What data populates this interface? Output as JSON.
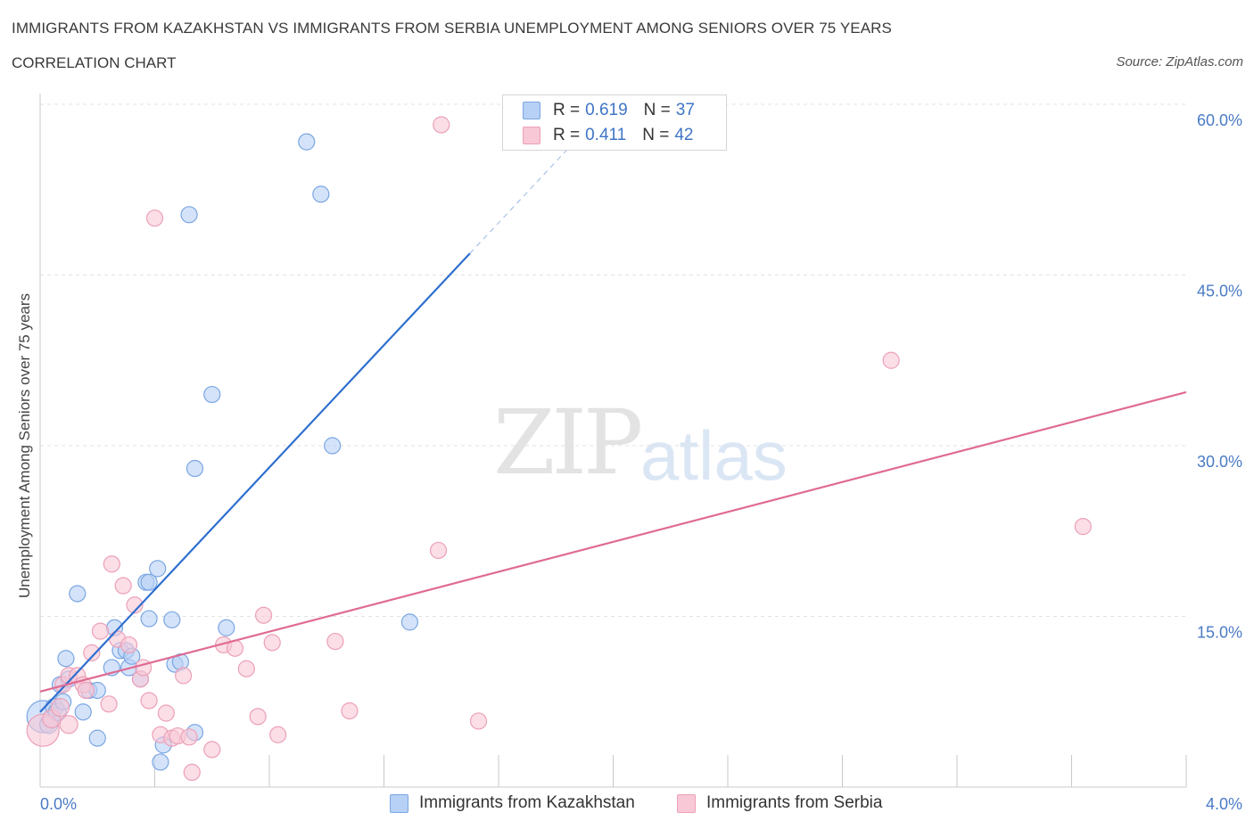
{
  "header": {
    "title": "IMMIGRANTS FROM KAZAKHSTAN VS IMMIGRANTS FROM SERBIA UNEMPLOYMENT AMONG SENIORS OVER 75 YEARS",
    "subtitle": "CORRELATION CHART",
    "source": "Source: ZipAtlas.com"
  },
  "watermark": {
    "zip": "ZIP",
    "atlas": "atlas"
  },
  "legend": {
    "series1": {
      "r_label": "R =",
      "r_value": "0.619",
      "n_label": "N =",
      "n_value": "37"
    },
    "series2": {
      "r_label": "R =",
      "r_value": "0.411",
      "n_label": "N =",
      "n_value": "42"
    }
  },
  "bottom_legend": {
    "series1": "Immigrants from Kazakhstan",
    "series2": "Immigrants from Serbia"
  },
  "colors": {
    "blue_fill": "#b7d0f5",
    "blue_stroke": "#7aa6e3",
    "blue_line": "#2f6fcf",
    "pink_fill": "#f8c8d6",
    "pink_stroke": "#eca0b8",
    "pink_line": "#e06a93",
    "grid": "#e2e2e2",
    "tick_text": "#4a7bc4"
  },
  "chart_data": {
    "type": "scatter",
    "title": "IMMIGRANTS FROM KAZAKHSTAN VS IMMIGRANTS FROM SERBIA UNEMPLOYMENT AMONG SENIORS OVER 75 YEARS",
    "xlabel": "",
    "ylabel": "Unemployment Among Seniors over 75 years",
    "xlim": [
      0,
      4.0
    ],
    "ylim": [
      0,
      60
    ],
    "x_ticks": [
      {
        "value": 0,
        "label": "0.0%"
      },
      {
        "value": 4.0,
        "label": "4.0%"
      }
    ],
    "y_ticks": [
      {
        "value": 15,
        "label": "15.0%"
      },
      {
        "value": 30,
        "label": "30.0%"
      },
      {
        "value": 45,
        "label": "45.0%"
      },
      {
        "value": 60,
        "label": "60.0%"
      }
    ],
    "x_minor_ticks": [
      0,
      0.4,
      0.8,
      1.2,
      1.6,
      2.0,
      2.4,
      2.8,
      3.2,
      3.6,
      4.0
    ],
    "series": [
      {
        "name": "Immigrants from Kazakhstan",
        "r": 0.619,
        "n": 37,
        "trend": {
          "x": [
            0.0,
            1.5
          ],
          "y": [
            6.6,
            46.9
          ],
          "dashed_to": [
            1.85,
            56.3
          ]
        },
        "points": [
          [
            0.01,
            6.2,
            18
          ],
          [
            0.03,
            5.5,
            10
          ],
          [
            0.05,
            7.0,
            10
          ],
          [
            0.06,
            6.6,
            10
          ],
          [
            0.08,
            7.5,
            9
          ],
          [
            0.07,
            9.0,
            9
          ],
          [
            0.1,
            9.5,
            9
          ],
          [
            0.09,
            11.3,
            9
          ],
          [
            0.13,
            17.0,
            9
          ],
          [
            0.15,
            6.6,
            9
          ],
          [
            0.17,
            8.5,
            9
          ],
          [
            0.2,
            8.5,
            9
          ],
          [
            0.2,
            4.3,
            9
          ],
          [
            0.25,
            10.5,
            9
          ],
          [
            0.26,
            14.0,
            9
          ],
          [
            0.28,
            12.0,
            9
          ],
          [
            0.3,
            12.0,
            9
          ],
          [
            0.31,
            10.5,
            9
          ],
          [
            0.32,
            11.5,
            9
          ],
          [
            0.35,
            9.5,
            9
          ],
          [
            0.37,
            18.0,
            9
          ],
          [
            0.38,
            18.0,
            9
          ],
          [
            0.38,
            14.8,
            9
          ],
          [
            0.41,
            19.2,
            9
          ],
          [
            0.42,
            2.2,
            9
          ],
          [
            0.43,
            3.7,
            9
          ],
          [
            0.46,
            14.7,
            9
          ],
          [
            0.47,
            10.8,
            9
          ],
          [
            0.49,
            11.0,
            9
          ],
          [
            0.52,
            50.3,
            9
          ],
          [
            0.54,
            28.0,
            9
          ],
          [
            0.54,
            4.8,
            9
          ],
          [
            0.6,
            34.5,
            9
          ],
          [
            0.65,
            14.0,
            9
          ],
          [
            0.93,
            56.7,
            9
          ],
          [
            0.98,
            52.1,
            9
          ],
          [
            1.02,
            30.0,
            9
          ],
          [
            1.29,
            14.5,
            9
          ]
        ]
      },
      {
        "name": "Immigrants from Serbia",
        "r": 0.411,
        "n": 42,
        "trend": {
          "x": [
            0.0,
            4.0
          ],
          "y": [
            8.4,
            34.7
          ]
        },
        "points": [
          [
            0.01,
            5.0,
            18
          ],
          [
            0.04,
            6.0,
            10
          ],
          [
            0.07,
            7.0,
            10
          ],
          [
            0.1,
            5.5,
            10
          ],
          [
            0.08,
            9.0,
            9
          ],
          [
            0.1,
            9.8,
            9
          ],
          [
            0.13,
            9.8,
            9
          ],
          [
            0.15,
            9.0,
            9
          ],
          [
            0.16,
            8.5,
            9
          ],
          [
            0.18,
            11.8,
            9
          ],
          [
            0.21,
            13.7,
            9
          ],
          [
            0.24,
            7.3,
            9
          ],
          [
            0.25,
            19.6,
            9
          ],
          [
            0.27,
            13.0,
            9
          ],
          [
            0.29,
            17.7,
            9
          ],
          [
            0.31,
            12.5,
            9
          ],
          [
            0.33,
            16.0,
            9
          ],
          [
            0.35,
            9.5,
            9
          ],
          [
            0.36,
            10.5,
            9
          ],
          [
            0.38,
            7.6,
            9
          ],
          [
            0.4,
            50.0,
            9
          ],
          [
            0.42,
            4.6,
            9
          ],
          [
            0.44,
            6.5,
            9
          ],
          [
            0.46,
            4.3,
            9
          ],
          [
            0.48,
            4.5,
            9
          ],
          [
            0.5,
            9.8,
            9
          ],
          [
            0.52,
            4.4,
            9
          ],
          [
            0.53,
            1.3,
            9
          ],
          [
            0.6,
            3.3,
            9
          ],
          [
            0.64,
            12.5,
            9
          ],
          [
            0.68,
            12.2,
            9
          ],
          [
            0.72,
            10.4,
            9
          ],
          [
            0.76,
            6.2,
            9
          ],
          [
            0.78,
            15.1,
            9
          ],
          [
            0.81,
            12.7,
            9
          ],
          [
            0.83,
            4.6,
            9
          ],
          [
            1.03,
            12.8,
            9
          ],
          [
            1.08,
            6.7,
            9
          ],
          [
            1.4,
            58.2,
            9
          ],
          [
            1.39,
            20.8,
            9
          ],
          [
            1.53,
            5.8,
            9
          ],
          [
            2.97,
            37.5,
            9
          ],
          [
            3.64,
            22.9,
            9
          ]
        ]
      }
    ]
  }
}
